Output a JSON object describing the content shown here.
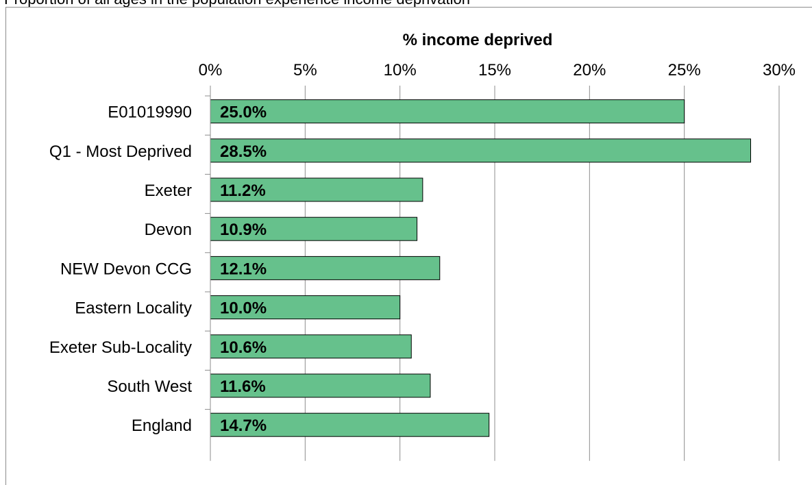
{
  "caption": "Proportion of all ages in the population experience income deprivation",
  "chart_data": {
    "type": "bar",
    "orientation": "horizontal",
    "title": "",
    "xlabel": "% income deprived",
    "ylabel": "",
    "xlim": [
      0,
      30
    ],
    "xticks": [
      "0%",
      "5%",
      "10%",
      "15%",
      "20%",
      "25%",
      "30%"
    ],
    "categories": [
      "E01019990",
      "Q1 - Most Deprived",
      "Exeter",
      "Devon",
      "NEW Devon CCG",
      "Eastern Locality",
      "Exeter Sub-Locality",
      "South West",
      "England"
    ],
    "values": [
      25.0,
      28.5,
      11.2,
      10.9,
      12.1,
      10.0,
      10.6,
      11.6,
      14.7
    ],
    "labels": [
      "25.0%",
      "28.5%",
      "11.2%",
      "10.9%",
      "12.1%",
      "10.0%",
      "10.6%",
      "11.6%",
      "14.7%"
    ],
    "bar_color": "#66c18c",
    "grid": true,
    "axis_position": "top"
  }
}
